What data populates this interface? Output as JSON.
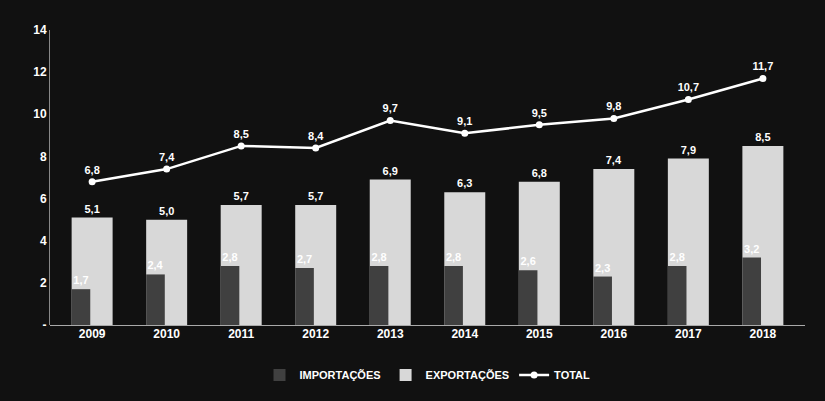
{
  "chart_data": {
    "type": "bar",
    "categories": [
      "2009",
      "2010",
      "2011",
      "2012",
      "2013",
      "2014",
      "2015",
      "2016",
      "2017",
      "2018"
    ],
    "series": [
      {
        "name": "IMPORTAÇÕES",
        "type": "bar",
        "color": "#404040",
        "values": [
          1.7,
          2.4,
          2.8,
          2.7,
          2.8,
          2.8,
          2.6,
          2.3,
          2.8,
          3.2
        ],
        "value_labels": [
          "1,7",
          "2,4",
          "2,8",
          "2,7",
          "2,8",
          "2,8",
          "2,6",
          "2,3",
          "2,8",
          "3,2"
        ]
      },
      {
        "name": "EXPORTAÇÕES",
        "type": "bar",
        "color": "#d8d8d8",
        "values": [
          5.1,
          5.0,
          5.7,
          5.7,
          6.9,
          6.3,
          6.8,
          7.4,
          7.9,
          8.5
        ],
        "value_labels": [
          "5,1",
          "5,0",
          "5,7",
          "5,7",
          "6,9",
          "6,3",
          "6,8",
          "7,4",
          "7,9",
          "8,5"
        ]
      },
      {
        "name": "TOTAL",
        "type": "line",
        "color": "#ffffff",
        "marker": "circle",
        "line_style": "solid",
        "values": [
          6.8,
          7.4,
          8.5,
          8.4,
          9.7,
          9.1,
          9.5,
          9.8,
          10.7,
          11.7
        ],
        "value_labels": [
          "6,8",
          "7,4",
          "8,5",
          "8,4",
          "9,7",
          "9,1",
          "9,5",
          "9,8",
          "10,7",
          "11,7"
        ]
      }
    ],
    "ylim": [
      0,
      14
    ],
    "yticks": [
      {
        "value": 0,
        "label": "-"
      },
      2,
      4,
      6,
      8,
      10,
      12,
      14
    ],
    "data_labels": true,
    "grid": false,
    "legend": "bottom"
  }
}
